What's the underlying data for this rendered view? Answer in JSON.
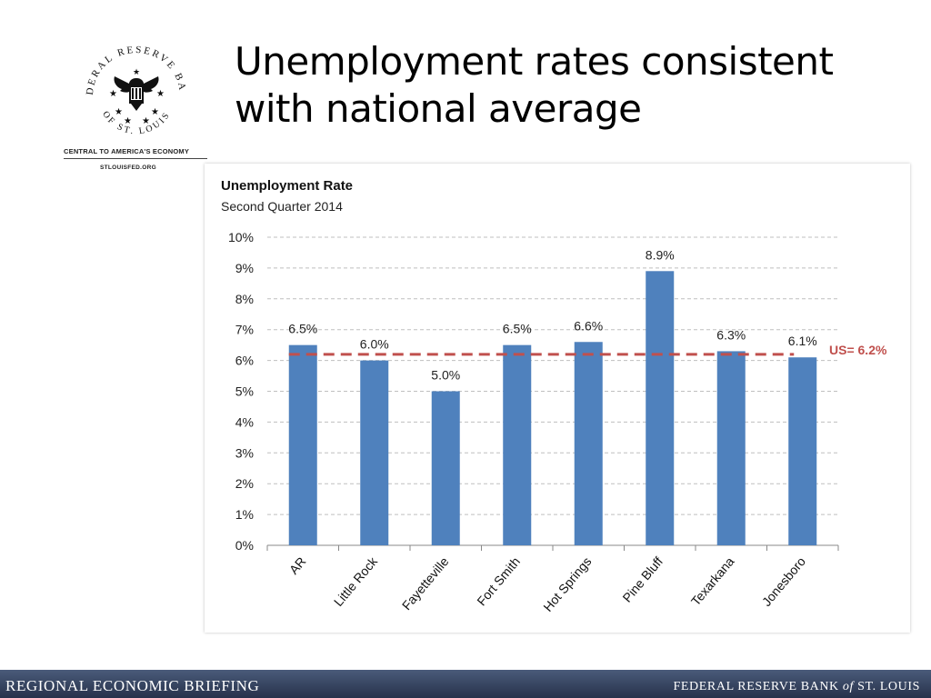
{
  "slide": {
    "title_line1": "Unemployment rates consistent",
    "title_line2": "with national average"
  },
  "logo": {
    "seal_top_text": "FEDERAL RESERVE BANK",
    "seal_bottom_text": "OF ST. LOUIS",
    "tagline": "CENTRAL TO AMERICA'S ECONOMY",
    "url": "STLOUISFED.ORG"
  },
  "footer": {
    "left": "REGIONAL ECONOMIC BRIEFING",
    "right_pre": "FEDERAL RESERVE BANK ",
    "right_of": "of",
    "right_post": " ST. LOUIS"
  },
  "colors": {
    "bar": "#4f81bd",
    "reference_line": "#c0504d",
    "grid": "#bfbfbf"
  },
  "chart_data": {
    "type": "bar",
    "title": "Unemployment Rate",
    "subtitle": "Second Quarter 2014",
    "categories": [
      "AR",
      "Little Rock",
      "Fayetteville",
      "Fort Smith",
      "Hot Springs",
      "Pine Bluff",
      "Texarkana",
      "Jonesboro"
    ],
    "values": [
      6.5,
      6.0,
      5.0,
      6.5,
      6.6,
      8.9,
      6.3,
      6.1
    ],
    "data_labels": [
      "6.5%",
      "6.0%",
      "5.0%",
      "6.5%",
      "6.6%",
      "8.9%",
      "6.3%",
      "6.1%"
    ],
    "ylim": [
      0,
      10
    ],
    "yticks": [
      0,
      1,
      2,
      3,
      4,
      5,
      6,
      7,
      8,
      9,
      10
    ],
    "ytick_labels": [
      "0%",
      "1%",
      "2%",
      "3%",
      "4%",
      "5%",
      "6%",
      "7%",
      "8%",
      "9%",
      "10%"
    ],
    "grid": true,
    "reference_line": {
      "value": 6.2,
      "label": "US= 6.2%",
      "style": "dashed"
    },
    "xlabel": "",
    "ylabel": ""
  }
}
